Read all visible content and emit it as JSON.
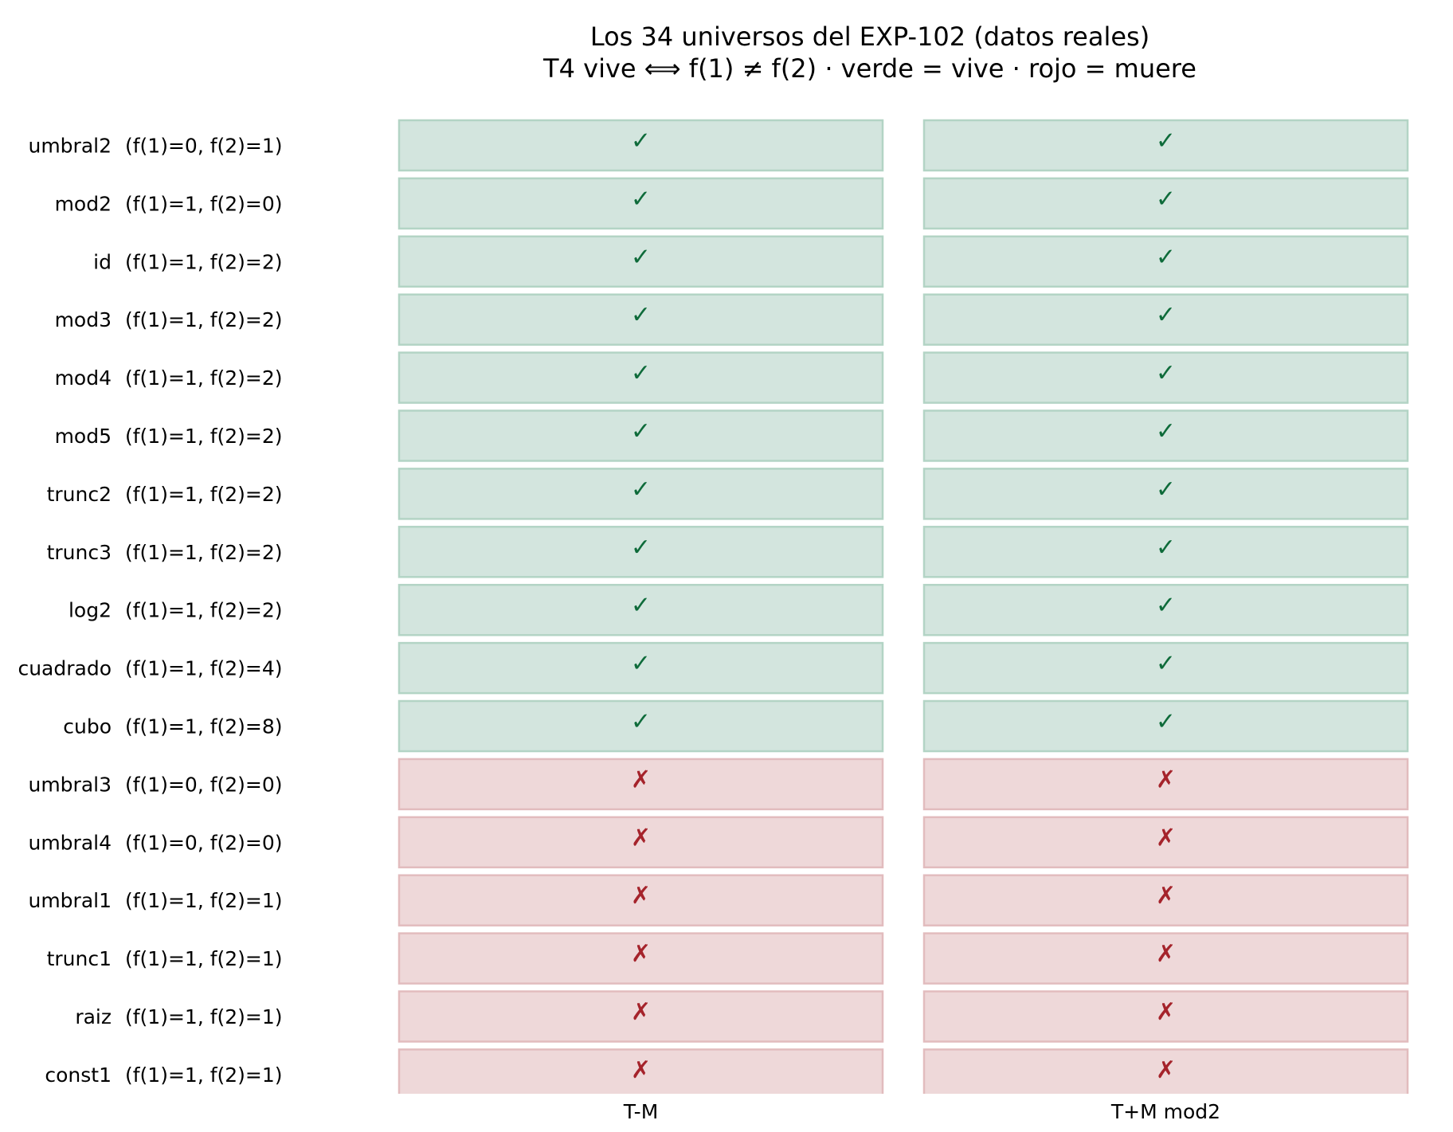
{
  "title": "Los 34 universos del EXP-102 (datos reales)",
  "subtitle": "T4 vive ⟺ f(1) ≠ f(2) · verde = vive · rojo = muere",
  "colors": {
    "vive_fill": "#d3e5de",
    "vive_edge": "#b3d4c5",
    "vive_mark": "#0e6b3a",
    "muere_fill": "#eed8d9",
    "muere_edge": "#e2bcbe",
    "muere_mark": "#a5232b"
  },
  "chart_data": {
    "type": "table",
    "columns": [
      "T-M",
      "T+M mod2"
    ],
    "symbols": {
      "vive": "✓",
      "muere": "✗"
    },
    "rows": [
      {
        "name": "umbral2",
        "values": "(f(1)=0, f(2)=1)",
        "status": [
          "vive",
          "vive"
        ]
      },
      {
        "name": "mod2",
        "values": "(f(1)=1, f(2)=0)",
        "status": [
          "vive",
          "vive"
        ]
      },
      {
        "name": "id",
        "values": "(f(1)=1, f(2)=2)",
        "status": [
          "vive",
          "vive"
        ]
      },
      {
        "name": "mod3",
        "values": "(f(1)=1, f(2)=2)",
        "status": [
          "vive",
          "vive"
        ]
      },
      {
        "name": "mod4",
        "values": "(f(1)=1, f(2)=2)",
        "status": [
          "vive",
          "vive"
        ]
      },
      {
        "name": "mod5",
        "values": "(f(1)=1, f(2)=2)",
        "status": [
          "vive",
          "vive"
        ]
      },
      {
        "name": "trunc2",
        "values": "(f(1)=1, f(2)=2)",
        "status": [
          "vive",
          "vive"
        ]
      },
      {
        "name": "trunc3",
        "values": "(f(1)=1, f(2)=2)",
        "status": [
          "vive",
          "vive"
        ]
      },
      {
        "name": "log2",
        "values": "(f(1)=1, f(2)=2)",
        "status": [
          "vive",
          "vive"
        ]
      },
      {
        "name": "cuadrado",
        "values": "(f(1)=1, f(2)=4)",
        "status": [
          "vive",
          "vive"
        ]
      },
      {
        "name": "cubo",
        "values": "(f(1)=1, f(2)=8)",
        "status": [
          "vive",
          "vive"
        ]
      },
      {
        "name": "umbral3",
        "values": "(f(1)=0, f(2)=0)",
        "status": [
          "muere",
          "muere"
        ]
      },
      {
        "name": "umbral4",
        "values": "(f(1)=0, f(2)=0)",
        "status": [
          "muere",
          "muere"
        ]
      },
      {
        "name": "umbral1",
        "values": "(f(1)=1, f(2)=1)",
        "status": [
          "muere",
          "muere"
        ]
      },
      {
        "name": "trunc1",
        "values": "(f(1)=1, f(2)=1)",
        "status": [
          "muere",
          "muere"
        ]
      },
      {
        "name": "raiz",
        "values": "(f(1)=1, f(2)=1)",
        "status": [
          "muere",
          "muere"
        ]
      },
      {
        "name": "const1",
        "values": "(f(1)=1, f(2)=1)",
        "status": [
          "muere",
          "muere"
        ]
      }
    ]
  }
}
